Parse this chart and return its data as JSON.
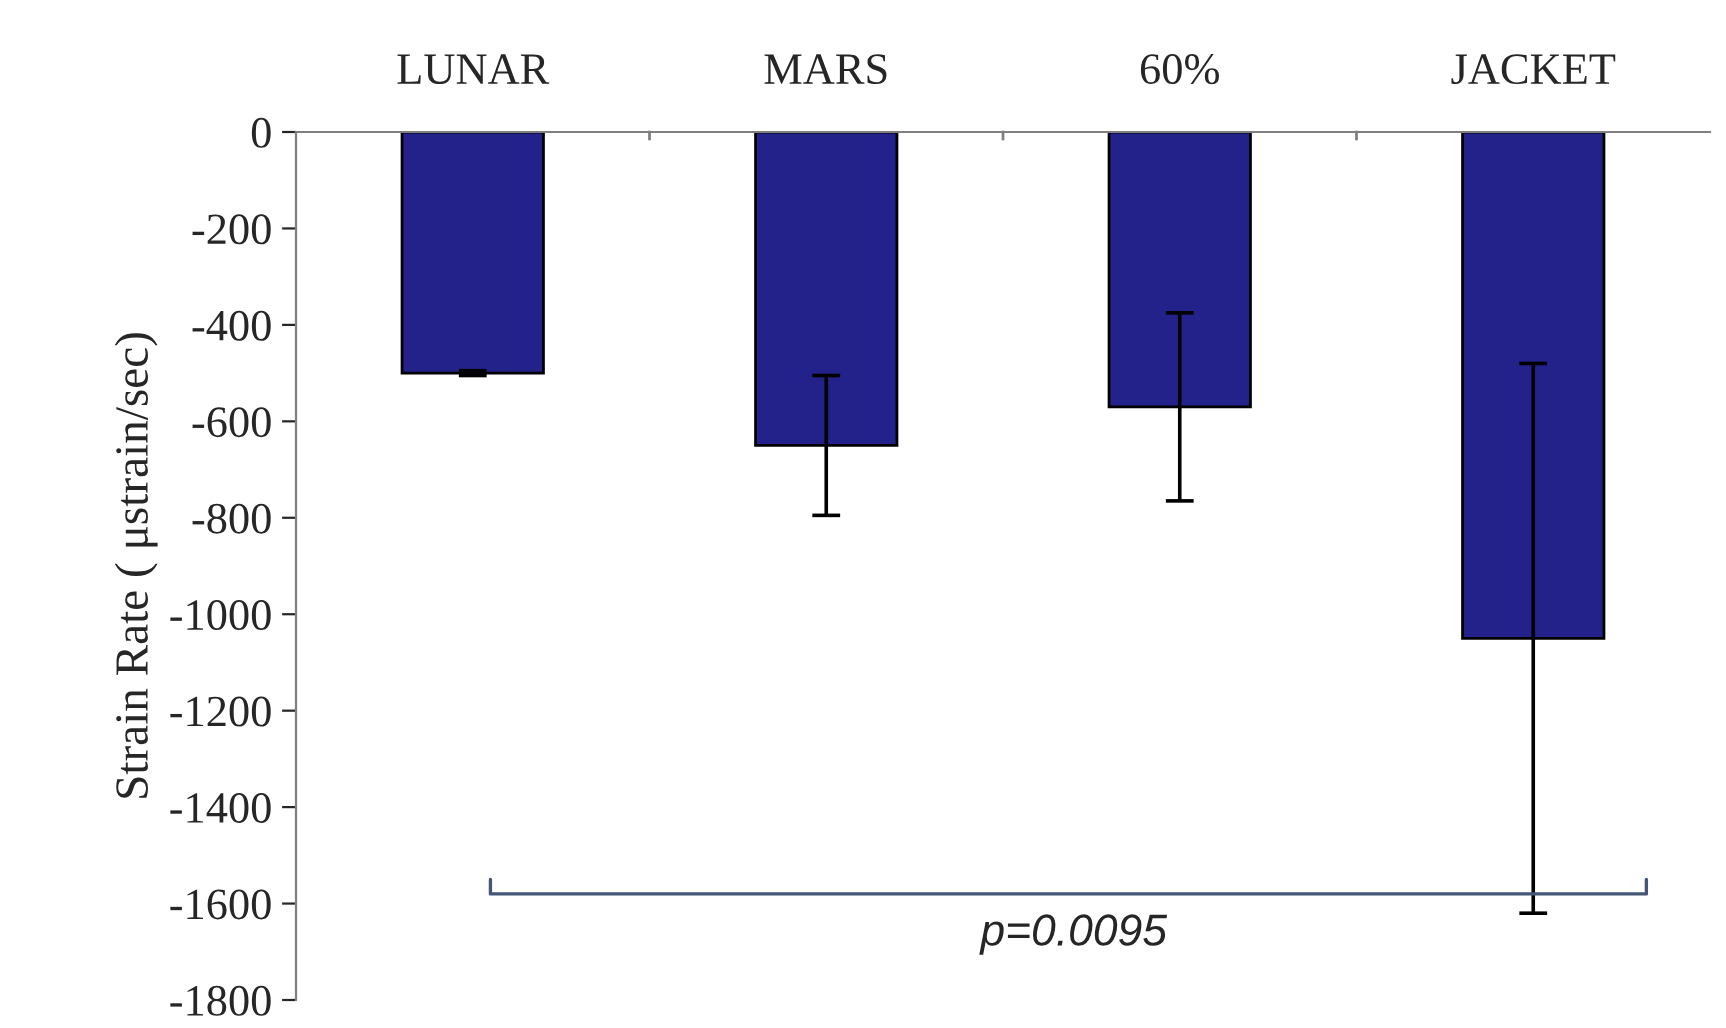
{
  "chart_data": {
    "type": "bar",
    "ylabel": "Strain Rate ( μstrain/sec)",
    "categories": [
      "LUNAR",
      "MARS",
      "60%",
      "JACKET"
    ],
    "values": [
      -500,
      -650,
      -570,
      -1050
    ],
    "errors": [
      5,
      145,
      195,
      570
    ],
    "color": "#22228a",
    "ylim": [
      -1800,
      0
    ],
    "yticks": [
      -1800,
      -1600,
      -1400,
      -1200,
      -1000,
      -800,
      -600,
      -400,
      -200,
      0
    ],
    "grid": false,
    "annotations": [
      "p=0.0095"
    ]
  }
}
